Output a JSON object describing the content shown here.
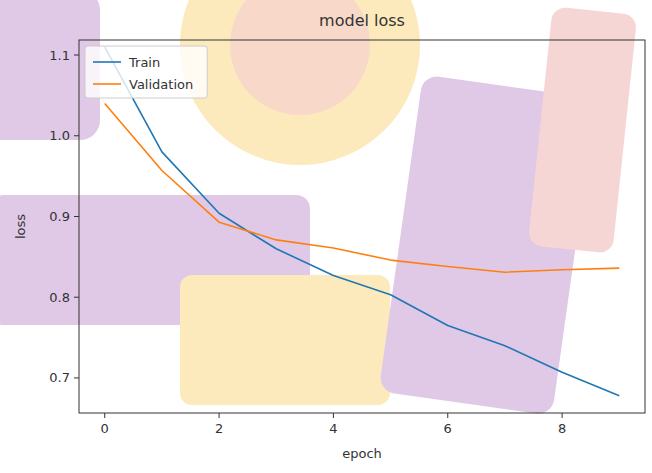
{
  "chart_data": {
    "type": "line",
    "title": "model loss",
    "x_label": "epoch",
    "y_label": "loss",
    "x": [
      0,
      1,
      2,
      3,
      4,
      5,
      6,
      7,
      8,
      9
    ],
    "series": [
      {
        "name": "Train",
        "color": "#1f77b4",
        "values": [
          1.11,
          0.98,
          0.904,
          0.86,
          0.827,
          0.803,
          0.765,
          0.74,
          0.707,
          0.678
        ]
      },
      {
        "name": "Validation",
        "color": "#ff7f0e",
        "values": [
          1.04,
          0.957,
          0.893,
          0.871,
          0.861,
          0.846,
          0.838,
          0.831,
          0.834,
          0.836
        ]
      }
    ],
    "xlim": [
      -0.45,
      9.45
    ],
    "xticks": [
      0,
      2,
      4,
      6,
      8
    ],
    "ylim": [
      0.6566,
      1.1186
    ],
    "yticks": [
      0.7,
      0.8,
      0.9,
      {
        "value": 1,
        "label": "1.0"
      },
      1.1
    ],
    "grid": false,
    "legend": "upper left"
  }
}
